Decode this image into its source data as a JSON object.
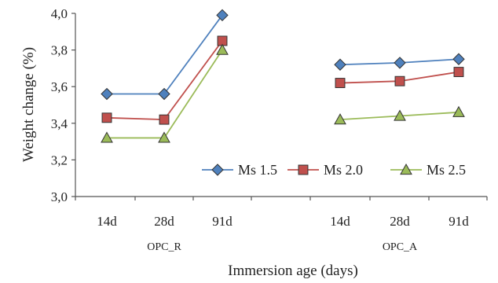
{
  "chart_data": {
    "type": "line",
    "xlabel": "Immersion age (days)",
    "ylabel": "Weight change (%)",
    "ylim": [
      3.0,
      4.0
    ],
    "yticks": [
      "3,0",
      "3,2",
      "3,4",
      "3,6",
      "3,8",
      "4,0"
    ],
    "grid": false,
    "legend_position": "bottom-right",
    "groups": [
      {
        "label": "OPC_R",
        "categories": [
          "14d",
          "28d",
          "91d"
        ]
      },
      {
        "label": "OPC_A",
        "categories": [
          "14d",
          "28d",
          "91d"
        ]
      }
    ],
    "series": [
      {
        "name": "Ms 1.5",
        "color": "#4f81bd",
        "marker": "diamond",
        "values": [
          [
            3.56,
            3.56,
            3.99
          ],
          [
            3.72,
            3.73,
            3.75
          ]
        ]
      },
      {
        "name": "Ms 2.0",
        "color": "#c0504d",
        "marker": "square",
        "values": [
          [
            3.43,
            3.42,
            3.85
          ],
          [
            3.62,
            3.63,
            3.68
          ]
        ]
      },
      {
        "name": "Ms 2.5",
        "color": "#9bbb59",
        "marker": "triangle",
        "values": [
          [
            3.32,
            3.32,
            3.8
          ],
          [
            3.42,
            3.44,
            3.46
          ]
        ]
      }
    ]
  }
}
